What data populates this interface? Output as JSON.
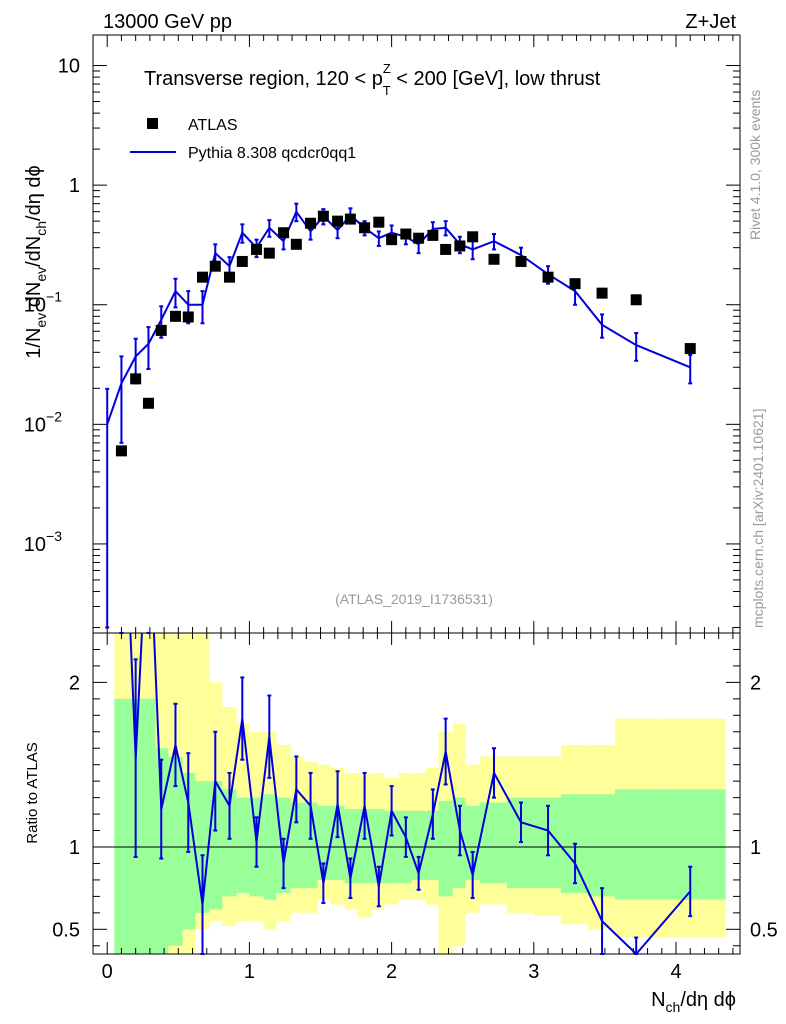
{
  "header": {
    "left": "13000 GeV pp",
    "right": "Z+Jet"
  },
  "side_labels": {
    "rivet": "Rivet 4.1.0,  300k events",
    "mcplots": "mcplots.cern.ch [arXiv:2401.10621]"
  },
  "chart_data": [
    {
      "type": "scatter",
      "title_parts": {
        "pre": "Transverse region, 120 < p",
        "sup": "Z",
        "sub": "T",
        "post": " < 200 [GeV], low thrust"
      },
      "watermark": "(ATLAS_2019_I1736531)",
      "ylabel": "1/N_ev dN_ev/dN_ch/dη dϕ",
      "yscale": "log",
      "ylim": [
        0.00018,
        18
      ],
      "xlim": [
        -0.1,
        4.45
      ],
      "y_tick_labels": [
        {
          "value": 10,
          "label": "10"
        },
        {
          "value": 1,
          "label": "1"
        },
        {
          "value": 0.1,
          "label": "10",
          "exp": "−1"
        },
        {
          "value": 0.01,
          "label": "10",
          "exp": "−2"
        },
        {
          "value": 0.001,
          "label": "10",
          "exp": "−3"
        }
      ],
      "legend": [
        {
          "name": "ATLAS",
          "marker": "square",
          "color": "#000000"
        },
        {
          "name": "Pythia 8.308 qcdcr0qq1",
          "marker": "line",
          "color": "#0000dd"
        }
      ],
      "series": [
        {
          "name": "ATLAS",
          "x": [
            0.1,
            0.2,
            0.29,
            0.38,
            0.48,
            0.57,
            0.67,
            0.76,
            0.86,
            0.95,
            1.05,
            1.14,
            1.24,
            1.33,
            1.43,
            1.52,
            1.62,
            1.71,
            1.81,
            1.91,
            2.0,
            2.1,
            2.19,
            2.29,
            2.38,
            2.48,
            2.57,
            2.72,
            2.91,
            3.1,
            3.29,
            3.48,
            3.72,
            4.1
          ],
          "y": [
            0.006,
            0.024,
            0.015,
            0.061,
            0.08,
            0.079,
            0.17,
            0.21,
            0.17,
            0.23,
            0.29,
            0.27,
            0.4,
            0.32,
            0.48,
            0.55,
            0.5,
            0.52,
            0.44,
            0.49,
            0.35,
            0.39,
            0.36,
            0.38,
            0.29,
            0.31,
            0.37,
            0.24,
            0.23,
            0.17,
            0.15,
            0.125,
            0.11,
            0.043
          ]
        },
        {
          "name": "Pythia 8.308 qcdcr0qq1",
          "x": [
            0.0,
            0.1,
            0.2,
            0.29,
            0.38,
            0.48,
            0.57,
            0.67,
            0.76,
            0.86,
            0.95,
            1.05,
            1.14,
            1.24,
            1.33,
            1.43,
            1.52,
            1.62,
            1.71,
            1.81,
            1.91,
            2.0,
            2.1,
            2.19,
            2.29,
            2.38,
            2.48,
            2.57,
            2.72,
            2.91,
            3.1,
            3.29,
            3.48,
            3.72,
            4.1
          ],
          "y": [
            0.01,
            0.022,
            0.037,
            0.047,
            0.075,
            0.13,
            0.1,
            0.1,
            0.27,
            0.21,
            0.4,
            0.3,
            0.44,
            0.34,
            0.6,
            0.41,
            0.55,
            0.42,
            0.56,
            0.44,
            0.36,
            0.4,
            0.37,
            0.32,
            0.43,
            0.44,
            0.32,
            0.29,
            0.34,
            0.26,
            0.18,
            0.13,
            0.068,
            0.046,
            0.03
          ],
          "yerr": [
            0.0098,
            0.015,
            0.015,
            0.018,
            0.022,
            0.035,
            0.03,
            0.03,
            0.05,
            0.04,
            0.07,
            0.05,
            0.07,
            0.05,
            0.1,
            0.06,
            0.08,
            0.06,
            0.08,
            0.06,
            0.05,
            0.06,
            0.05,
            0.05,
            0.06,
            0.06,
            0.05,
            0.05,
            0.05,
            0.04,
            0.03,
            0.03,
            0.015,
            0.012,
            0.008
          ]
        }
      ]
    },
    {
      "type": "line",
      "ylabel": "Ratio to ATLAS",
      "xlabel": "N_ch/dη dϕ",
      "ylim": [
        0.35,
        2.3
      ],
      "xlim": [
        -0.1,
        4.45
      ],
      "x_tick_labels": [
        "0",
        "1",
        "2",
        "3",
        "4"
      ],
      "y_tick_labels": [
        "0.5",
        "1",
        "2"
      ],
      "reference": 1,
      "bands": {
        "edges": [
          0.05,
          0.15,
          0.24,
          0.34,
          0.43,
          0.53,
          0.62,
          0.72,
          0.81,
          0.91,
          1.0,
          1.1,
          1.19,
          1.29,
          1.38,
          1.48,
          1.57,
          1.67,
          1.76,
          1.86,
          1.95,
          2.05,
          2.14,
          2.24,
          2.33,
          2.43,
          2.52,
          2.62,
          2.81,
          3.0,
          3.19,
          3.38,
          3.57,
          3.86,
          4.35
        ],
        "green_lo": [
          0.35,
          0.35,
          0.35,
          0.35,
          0.4,
          0.5,
          0.6,
          0.62,
          0.7,
          0.72,
          0.7,
          0.68,
          0.72,
          0.75,
          0.75,
          0.8,
          0.8,
          0.78,
          0.78,
          0.78,
          0.78,
          0.78,
          0.8,
          0.8,
          0.7,
          0.75,
          0.8,
          0.78,
          0.75,
          0.75,
          0.72,
          0.7,
          0.68,
          0.68
        ],
        "green_hi": [
          1.9,
          1.9,
          1.9,
          1.6,
          1.55,
          1.45,
          1.4,
          1.4,
          1.35,
          1.3,
          1.3,
          1.32,
          1.3,
          1.27,
          1.27,
          1.25,
          1.25,
          1.23,
          1.23,
          1.23,
          1.22,
          1.22,
          1.22,
          1.22,
          1.28,
          1.3,
          1.25,
          1.27,
          1.3,
          1.3,
          1.32,
          1.32,
          1.35,
          1.35
        ],
        "yellow_lo": [
          0.35,
          0.35,
          0.35,
          0.35,
          0.35,
          0.35,
          0.5,
          0.55,
          0.52,
          0.55,
          0.55,
          0.5,
          0.55,
          0.6,
          0.6,
          0.68,
          0.65,
          0.62,
          0.57,
          0.62,
          0.65,
          0.68,
          0.68,
          0.65,
          0.35,
          0.4,
          0.6,
          0.65,
          0.6,
          0.58,
          0.53,
          0.5,
          0.45,
          0.45
        ],
        "yellow_hi": [
          2.3,
          2.3,
          2.3,
          2.3,
          2.3,
          2.3,
          2.3,
          2.0,
          1.85,
          1.75,
          1.7,
          1.7,
          1.62,
          1.55,
          1.52,
          1.5,
          1.48,
          1.45,
          1.45,
          1.45,
          1.42,
          1.45,
          1.45,
          1.48,
          1.7,
          1.75,
          1.5,
          1.55,
          1.55,
          1.55,
          1.62,
          1.62,
          1.78,
          1.78
        ]
      },
      "series": [
        {
          "name": "Pythia 8.308 qcdcr0qq1",
          "x": [
            0.1,
            0.2,
            0.29,
            0.38,
            0.48,
            0.57,
            0.67,
            0.76,
            0.86,
            0.95,
            1.05,
            1.14,
            1.24,
            1.33,
            1.43,
            1.52,
            1.62,
            1.71,
            1.81,
            1.91,
            2.0,
            2.1,
            2.19,
            2.29,
            2.38,
            2.48,
            2.57,
            2.72,
            2.91,
            3.1,
            3.29,
            3.48,
            3.72,
            4.1
          ],
          "y": [
            3.6,
            1.54,
            3.1,
            1.23,
            1.62,
            1.27,
            0.65,
            1.4,
            1.25,
            1.78,
            1.03,
            1.67,
            0.9,
            1.35,
            1.25,
            0.78,
            1.26,
            0.81,
            1.25,
            0.76,
            1.22,
            1.06,
            0.84,
            1.2,
            1.58,
            1.1,
            0.83,
            1.45,
            1.15,
            1.1,
            0.9,
            0.55,
            0.35,
            0.73
          ],
          "yerr": [
            1.0,
            0.6,
            0.7,
            0.3,
            0.25,
            0.3,
            0.3,
            0.3,
            0.2,
            0.25,
            0.15,
            0.25,
            0.15,
            0.2,
            0.2,
            0.12,
            0.2,
            0.12,
            0.2,
            0.12,
            0.15,
            0.12,
            0.1,
            0.15,
            0.2,
            0.15,
            0.14,
            0.15,
            0.12,
            0.15,
            0.12,
            0.2,
            0.1,
            0.15
          ]
        }
      ]
    }
  ]
}
